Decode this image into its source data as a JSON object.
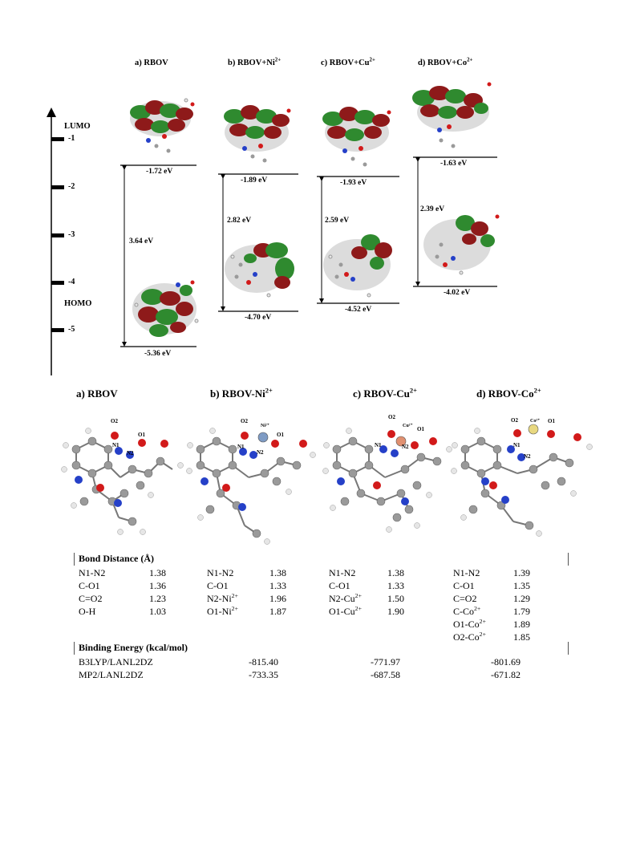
{
  "orbital_figure": {
    "panel_titles": [
      "a) RBOV",
      "b) RBOV+Ni",
      "c) RBOV+Cu",
      "d) RBOV+Co"
    ],
    "panel_title_sup": [
      "",
      "2+",
      "2+",
      "2+"
    ],
    "lumo_label": "LUMO",
    "homo_label": "HOMO",
    "axis_ticks": [
      "-1",
      "-2",
      "-3",
      "-4",
      "-5"
    ],
    "lumo_energies": [
      "-1.72 eV",
      "-1.89 eV",
      "-1.93 eV",
      "-1.63 eV"
    ],
    "homo_energies": [
      "-5.36 eV",
      "-4.70 eV",
      "-4.52 eV",
      "-4.02 eV"
    ],
    "gaps": [
      "3.64 eV",
      "2.82 eV",
      "2.59 eV",
      "2.39 eV"
    ]
  },
  "structure_figure": {
    "titles": [
      "a)   RBOV",
      "b) RBOV-Ni",
      "c) RBOV-Cu",
      "d) RBOV-Co"
    ],
    "title_sup": [
      "",
      "2+",
      "2+",
      "2+"
    ],
    "atom_labels": {
      "a": [
        "O2",
        "O1",
        "N1",
        "N2"
      ],
      "b": [
        "O2",
        "Ni²⁺",
        "O1",
        "N1",
        "N2"
      ],
      "c": [
        "O2",
        "Cu²⁺",
        "O1",
        "N1",
        "N2"
      ],
      "d": [
        "O2",
        "Co²⁺",
        "O1",
        "N1",
        "N2"
      ]
    }
  },
  "table": {
    "bond_header": "Bond Distance (Å)",
    "energy_header": "Binding Energy (kcal/mol)",
    "col_a": [
      [
        "N1-N2",
        "1.38"
      ],
      [
        "C-O1",
        "1.36"
      ],
      [
        "C=O2",
        "1.23"
      ],
      [
        "O-H",
        "1.03"
      ]
    ],
    "col_b": [
      [
        "N1-N2",
        "1.38"
      ],
      [
        "C-O1",
        "1.33"
      ],
      [
        "N2-Ni",
        "1.96"
      ],
      [
        "O1-Ni",
        "1.87"
      ]
    ],
    "col_b_sup": [
      "",
      "",
      "2+",
      "2+"
    ],
    "col_c": [
      [
        "N1-N2",
        "1.38"
      ],
      [
        "C-O1",
        "1.33"
      ],
      [
        "N2-Cu",
        "1.50"
      ],
      [
        "O1-Cu",
        "1.90"
      ]
    ],
    "col_c_sup": [
      "",
      "",
      "2+",
      "2+"
    ],
    "col_d": [
      [
        "N1-N2",
        "1.39"
      ],
      [
        "C-O1",
        "1.35"
      ],
      [
        "C=O2",
        "1.29"
      ],
      [
        "C-Co",
        "1.79"
      ],
      [
        "O1-Co",
        "1.89"
      ],
      [
        "O2-Co",
        "1.85"
      ]
    ],
    "col_d_sup": [
      "",
      "",
      "",
      "2+",
      "2+",
      "2+"
    ],
    "energies": [
      {
        "method": "B3LYP/LANL2DZ",
        "values": [
          "-815.40",
          "-771.97",
          "-801.69"
        ]
      },
      {
        "method": "MP2/LANL2DZ",
        "values": [
          "-733.35",
          "-687.58",
          "-671.82"
        ]
      }
    ]
  },
  "colors": {
    "orbital_pos": "#8e1a1a",
    "orbital_neg": "#2f8a2f",
    "carbon": "#9a9a9a",
    "hydrogen": "#e6e6e6",
    "oxygen": "#d21a1a",
    "nitrogen": "#2540c8",
    "nickel": "#7e9bc4",
    "copper": "#e09070",
    "cobalt": "#e8d880"
  }
}
